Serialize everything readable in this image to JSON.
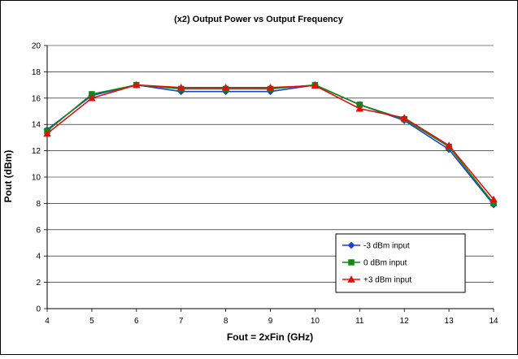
{
  "chart_data": {
    "type": "line",
    "title": "(x2) Output Power vs Output Frequency",
    "xlabel": "Fout = 2xFin (GHz)",
    "ylabel": "Pout (dBm)",
    "x": [
      4,
      5,
      6,
      7,
      8,
      9,
      10,
      11,
      12,
      13,
      14
    ],
    "xlim": [
      4,
      14
    ],
    "ylim": [
      0,
      20
    ],
    "xticks": [
      4,
      5,
      6,
      7,
      8,
      9,
      10,
      11,
      12,
      13,
      14
    ],
    "yticks": [
      0,
      2,
      4,
      6,
      8,
      10,
      12,
      14,
      16,
      18,
      20
    ],
    "grid": "horizontal",
    "legend_position": "bottom-right",
    "series": [
      {
        "name": "-3 dBm input",
        "color": "#1f3fd0",
        "marker": "diamond",
        "values": [
          13.6,
          16.2,
          17.0,
          16.5,
          16.5,
          16.5,
          17.0,
          15.5,
          14.3,
          12.1,
          7.9
        ]
      },
      {
        "name": "0 dBm input",
        "color": "#118811",
        "marker": "square",
        "values": [
          13.5,
          16.3,
          17.0,
          16.7,
          16.7,
          16.7,
          17.0,
          15.5,
          14.4,
          12.3,
          8.0
        ]
      },
      {
        "name": "+3 dBm input",
        "color": "#e01010",
        "marker": "triangle",
        "values": [
          13.3,
          16.0,
          17.0,
          16.8,
          16.8,
          16.8,
          16.95,
          15.2,
          14.5,
          12.4,
          8.3
        ]
      }
    ]
  }
}
